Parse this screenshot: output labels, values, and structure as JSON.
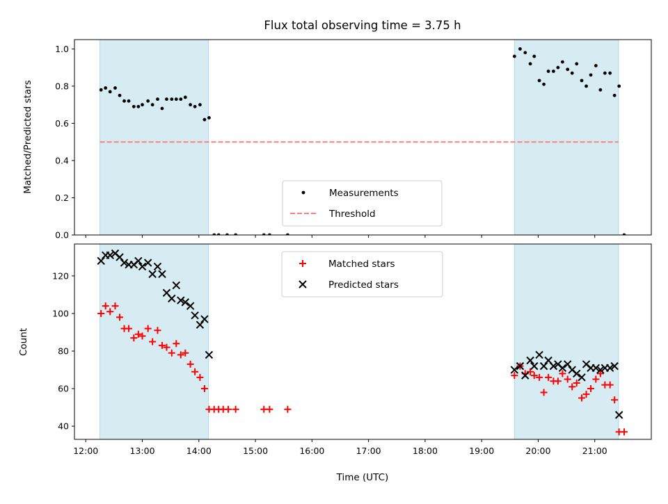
{
  "title": "Flux total observing time = 3.75 h",
  "chart_data": [
    {
      "type": "scatter",
      "name": "ratio-panel",
      "ylabel": "Matched/Predicted stars",
      "ylim": [
        0,
        1.05
      ],
      "yticks": [
        0.0,
        0.2,
        0.4,
        0.6,
        0.8,
        1.0
      ],
      "ytick_labels": [
        "0.0",
        "0.2",
        "0.4",
        "0.6",
        "0.8",
        "1.0"
      ],
      "xlim": [
        11.8,
        22.0
      ],
      "shaded_intervals": [
        [
          12.25,
          14.17
        ],
        [
          19.58,
          21.42
        ]
      ],
      "shade_color": "#add8e6",
      "legend": {
        "placement": "lower-center",
        "entries": [
          "Measurements",
          "Threshold"
        ]
      },
      "threshold": {
        "name": "Threshold",
        "value": 0.5,
        "x": [
          12.25,
          21.42
        ],
        "color": "#ff7f7f",
        "style": "dashed"
      },
      "series": [
        {
          "name": "Measurements",
          "marker": "dot",
          "color": "#000000",
          "points": [
            [
              12.27,
              0.78
            ],
            [
              12.35,
              0.79
            ],
            [
              12.43,
              0.77
            ],
            [
              12.52,
              0.79
            ],
            [
              12.6,
              0.75
            ],
            [
              12.68,
              0.72
            ],
            [
              12.76,
              0.72
            ],
            [
              12.85,
              0.69
            ],
            [
              12.93,
              0.69
            ],
            [
              13.0,
              0.7
            ],
            [
              13.1,
              0.72
            ],
            [
              13.18,
              0.7
            ],
            [
              13.27,
              0.73
            ],
            [
              13.35,
              0.68
            ],
            [
              13.43,
              0.73
            ],
            [
              13.52,
              0.73
            ],
            [
              13.6,
              0.73
            ],
            [
              13.68,
              0.73
            ],
            [
              13.76,
              0.74
            ],
            [
              13.85,
              0.7
            ],
            [
              13.93,
              0.69
            ],
            [
              14.02,
              0.7
            ],
            [
              14.1,
              0.62
            ],
            [
              14.18,
              0.63
            ],
            [
              14.27,
              0.0
            ],
            [
              14.35,
              0.0
            ],
            [
              14.5,
              0.0
            ],
            [
              14.65,
              0.0
            ],
            [
              15.15,
              0.0
            ],
            [
              15.25,
              0.0
            ],
            [
              15.57,
              0.0
            ],
            [
              19.58,
              0.96
            ],
            [
              19.68,
              1.0
            ],
            [
              19.77,
              0.98
            ],
            [
              19.86,
              0.92
            ],
            [
              19.93,
              0.96
            ],
            [
              20.02,
              0.83
            ],
            [
              20.1,
              0.81
            ],
            [
              20.18,
              0.88
            ],
            [
              20.27,
              0.88
            ],
            [
              20.35,
              0.9
            ],
            [
              20.43,
              0.93
            ],
            [
              20.52,
              0.89
            ],
            [
              20.6,
              0.87
            ],
            [
              20.68,
              0.92
            ],
            [
              20.77,
              0.83
            ],
            [
              20.85,
              0.8
            ],
            [
              20.93,
              0.86
            ],
            [
              21.02,
              0.91
            ],
            [
              21.1,
              0.78
            ],
            [
              21.18,
              0.87
            ],
            [
              21.27,
              0.87
            ],
            [
              21.35,
              0.75
            ],
            [
              21.43,
              0.8
            ],
            [
              21.52,
              0.0
            ]
          ]
        }
      ]
    },
    {
      "type": "scatter",
      "name": "count-panel",
      "ylabel": "Count",
      "xlabel": "Time (UTC)",
      "ylim": [
        33,
        137
      ],
      "yticks": [
        40,
        60,
        80,
        100,
        120
      ],
      "ytick_labels": [
        "40",
        "60",
        "80",
        "100",
        "120"
      ],
      "xlim": [
        11.8,
        22.0
      ],
      "xticks": [
        12,
        13,
        14,
        15,
        16,
        17,
        18,
        19,
        20,
        21
      ],
      "xtick_labels": [
        "12:00",
        "13:00",
        "14:00",
        "15:00",
        "16:00",
        "17:00",
        "18:00",
        "19:00",
        "20:00",
        "21:00"
      ],
      "shaded_intervals": [
        [
          12.25,
          14.17
        ],
        [
          19.58,
          21.42
        ]
      ],
      "shade_color": "#add8e6",
      "legend": {
        "placement": "upper-center",
        "entries": [
          "Matched stars",
          "Predicted stars"
        ]
      },
      "series": [
        {
          "name": "Matched stars",
          "marker": "plus",
          "color": "#ff0000",
          "points": [
            [
              12.27,
              100
            ],
            [
              12.35,
              104
            ],
            [
              12.43,
              101
            ],
            [
              12.52,
              104
            ],
            [
              12.6,
              98
            ],
            [
              12.68,
              92
            ],
            [
              12.76,
              92
            ],
            [
              12.85,
              87
            ],
            [
              12.93,
              89
            ],
            [
              13.0,
              88
            ],
            [
              13.1,
              92
            ],
            [
              13.18,
              85
            ],
            [
              13.27,
              91
            ],
            [
              13.35,
              83
            ],
            [
              13.43,
              82
            ],
            [
              13.52,
              79
            ],
            [
              13.6,
              84
            ],
            [
              13.68,
              78
            ],
            [
              13.76,
              79
            ],
            [
              13.85,
              73
            ],
            [
              13.93,
              69
            ],
            [
              14.02,
              66
            ],
            [
              14.1,
              60
            ],
            [
              14.18,
              49
            ],
            [
              14.27,
              49
            ],
            [
              14.35,
              49
            ],
            [
              14.43,
              49
            ],
            [
              14.52,
              49
            ],
            [
              14.65,
              49
            ],
            [
              15.15,
              49
            ],
            [
              15.25,
              49
            ],
            [
              15.57,
              49
            ],
            [
              19.58,
              67
            ],
            [
              19.68,
              72
            ],
            [
              19.77,
              68
            ],
            [
              19.86,
              69
            ],
            [
              19.93,
              67
            ],
            [
              20.02,
              66
            ],
            [
              20.1,
              58
            ],
            [
              20.18,
              66
            ],
            [
              20.27,
              64
            ],
            [
              20.35,
              64
            ],
            [
              20.43,
              68
            ],
            [
              20.52,
              65
            ],
            [
              20.6,
              61
            ],
            [
              20.68,
              63
            ],
            [
              20.77,
              55
            ],
            [
              20.85,
              57
            ],
            [
              20.93,
              60
            ],
            [
              21.02,
              65
            ],
            [
              21.1,
              68
            ],
            [
              21.18,
              62
            ],
            [
              21.27,
              62
            ],
            [
              21.35,
              54
            ],
            [
              21.43,
              37
            ],
            [
              21.52,
              37
            ]
          ]
        },
        {
          "name": "Predicted stars",
          "marker": "x",
          "color": "#000000",
          "points": [
            [
              12.27,
              128
            ],
            [
              12.35,
              131
            ],
            [
              12.43,
              131
            ],
            [
              12.52,
              132
            ],
            [
              12.6,
              130
            ],
            [
              12.68,
              127
            ],
            [
              12.76,
              126
            ],
            [
              12.85,
              126
            ],
            [
              12.93,
              128
            ],
            [
              13.0,
              125
            ],
            [
              13.1,
              127
            ],
            [
              13.18,
              121
            ],
            [
              13.27,
              125
            ],
            [
              13.35,
              121
            ],
            [
              13.43,
              111
            ],
            [
              13.52,
              108
            ],
            [
              13.6,
              115
            ],
            [
              13.68,
              107
            ],
            [
              13.76,
              106
            ],
            [
              13.85,
              104
            ],
            [
              13.93,
              99
            ],
            [
              14.02,
              94
            ],
            [
              14.1,
              97
            ],
            [
              14.18,
              78
            ],
            [
              19.58,
              70
            ],
            [
              19.68,
              72
            ],
            [
              19.77,
              67
            ],
            [
              19.86,
              75
            ],
            [
              19.93,
              72
            ],
            [
              20.02,
              78
            ],
            [
              20.1,
              72
            ],
            [
              20.18,
              75
            ],
            [
              20.27,
              72
            ],
            [
              20.35,
              73
            ],
            [
              20.43,
              71
            ],
            [
              20.52,
              73
            ],
            [
              20.6,
              70
            ],
            [
              20.68,
              68
            ],
            [
              20.77,
              66
            ],
            [
              20.85,
              73
            ],
            [
              20.93,
              71
            ],
            [
              21.02,
              71
            ],
            [
              21.1,
              70
            ],
            [
              21.18,
              71
            ],
            [
              21.27,
              71
            ],
            [
              21.35,
              72
            ],
            [
              21.43,
              46
            ]
          ]
        }
      ]
    }
  ]
}
